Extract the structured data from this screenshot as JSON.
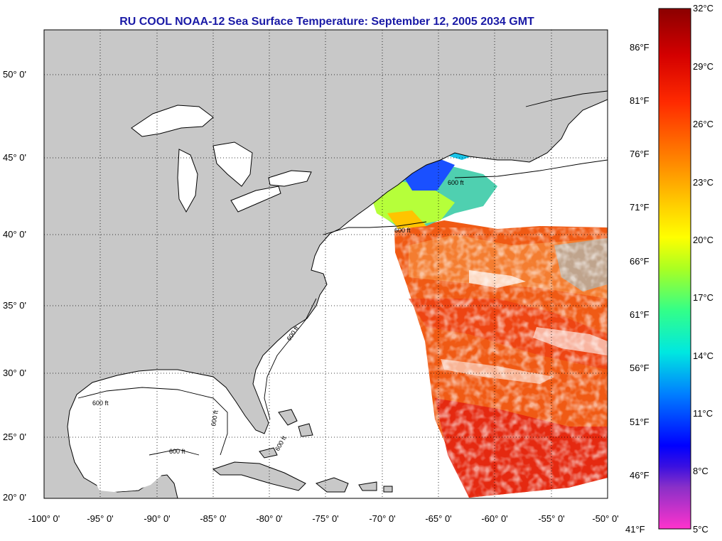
{
  "title": "RU COOL  NOAA-12  Sea Surface Temperature:  September 12, 2005 2034 GMT",
  "map": {
    "lon_range": [
      -100,
      -50
    ],
    "lat_range": [
      20,
      52
    ],
    "lat_ticks": [
      "20° 0'",
      "25° 0'",
      "30° 0'",
      "35° 0'",
      "40° 0'",
      "45° 0'",
      "50° 0'"
    ],
    "lon_ticks": [
      "-100° 0'",
      "-95° 0'",
      "-90° 0'",
      "-85° 0'",
      "-80° 0'",
      "-75° 0'",
      "-70° 0'",
      "-65° 0'",
      "-60° 0'",
      "-55° 0'",
      "-50° 0'"
    ],
    "land_color": "#c8c8c8",
    "grid": "dotted",
    "isobath_labels": [
      "600 ft",
      "600 ft",
      "600 ft",
      "600 ft",
      "600 ft",
      "600 ft",
      "600 ft"
    ]
  },
  "colorbar": {
    "celsius": [
      "32°C",
      "29°C",
      "26°C",
      "23°C",
      "20°C",
      "17°C",
      "14°C",
      "11°C",
      "8°C",
      "5°C"
    ],
    "fahrenheit": [
      "86°F",
      "81°F",
      "76°F",
      "71°F",
      "66°F",
      "61°F",
      "56°F",
      "51°F",
      "46°F",
      "41°F"
    ],
    "colors_top_to_bottom": [
      "#8b0000",
      "#e10000",
      "#ff3300",
      "#ff8800",
      "#ffcc00",
      "#ccff00",
      "#66ff33",
      "#00f0b0",
      "#00e5ff",
      "#0080ff",
      "#0000ff",
      "#5b23c8",
      "#ff2dd0"
    ]
  }
}
